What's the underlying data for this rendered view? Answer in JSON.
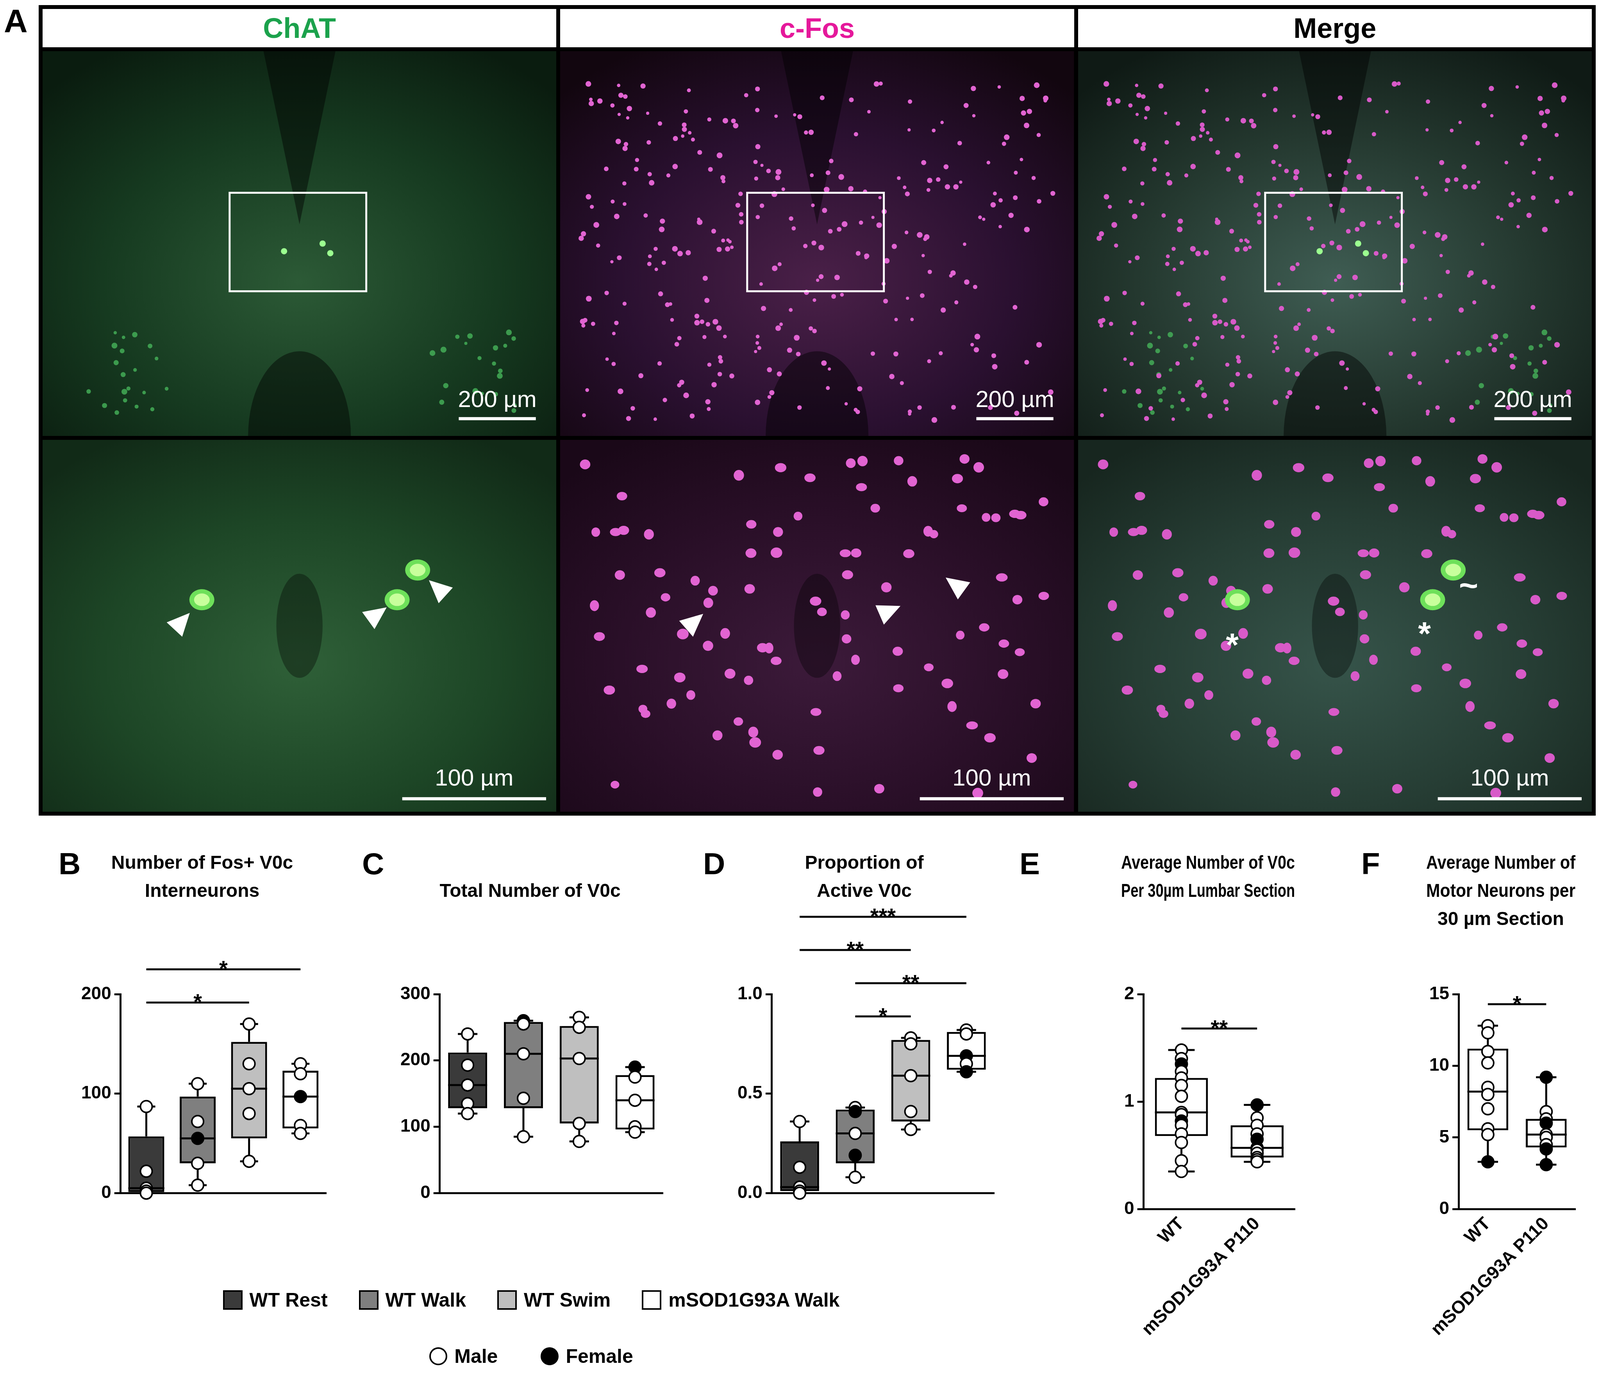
{
  "panel_a": {
    "panel": "A",
    "columns": [
      {
        "title": "ChAT",
        "color": "#1ba24c"
      },
      {
        "title": "c-Fos",
        "color": "#e5189b"
      },
      {
        "title": "Merge",
        "color": "#000000"
      }
    ],
    "scale_bars": [
      "200 µm",
      "100 µm"
    ],
    "merge_marks": [
      "*",
      "*",
      "~"
    ]
  },
  "point_key": [
    {
      "label": "Male",
      "marker": "open_circle"
    },
    {
      "label": "Female",
      "marker": "filled_circle"
    }
  ],
  "chart_data": [
    {
      "panel": "B",
      "type": "box",
      "title": [
        "Number of Fos+ V0c",
        "Interneurons"
      ],
      "categories": [
        "WT Rest",
        "WT Walk",
        "WT Swim",
        "mSOD1G93A Walk"
      ],
      "colors": [
        "#3a3a3a",
        "#7f7f7f",
        "#bfbfbf",
        "#ffffff"
      ],
      "legend": "bottom",
      "tick_labels": "y",
      "ylim": [
        0,
        200
      ],
      "yticks": [
        0,
        100,
        200
      ],
      "boxes": [
        {
          "min": 0,
          "q1": 1,
          "median": 5,
          "q3": 57,
          "max": 87
        },
        {
          "min": 8,
          "q1": 30,
          "median": 55,
          "q3": 97,
          "max": 110
        },
        {
          "min": 32,
          "q1": 55,
          "median": 105,
          "q3": 152,
          "max": 170
        },
        {
          "min": 60,
          "q1": 65,
          "median": 97,
          "q3": 123,
          "max": 130
        }
      ],
      "points": [
        [
          {
            "value": 87,
            "sex": "Male"
          },
          {
            "value": 22,
            "sex": "Male"
          },
          {
            "value": 5,
            "sex": "Male"
          },
          {
            "value": 2,
            "sex": "Male"
          },
          {
            "value": 0,
            "sex": "Male"
          }
        ],
        [
          {
            "value": 110,
            "sex": "Male"
          },
          {
            "value": 72,
            "sex": "Male"
          },
          {
            "value": 55,
            "sex": "Female"
          },
          {
            "value": 30,
            "sex": "Male"
          },
          {
            "value": 8,
            "sex": "Male"
          }
        ],
        [
          {
            "value": 170,
            "sex": "Male"
          },
          {
            "value": 130,
            "sex": "Male"
          },
          {
            "value": 105,
            "sex": "Male"
          },
          {
            "value": 80,
            "sex": "Male"
          },
          {
            "value": 32,
            "sex": "Male"
          }
        ],
        [
          {
            "value": 130,
            "sex": "Male"
          },
          {
            "value": 120,
            "sex": "Male"
          },
          {
            "value": 97,
            "sex": "Female"
          },
          {
            "value": 68,
            "sex": "Male"
          },
          {
            "value": 60,
            "sex": "Male"
          }
        ]
      ],
      "significance": [
        {
          "between": [
            "WT Rest",
            "WT Swim"
          ],
          "label": "*"
        },
        {
          "between": [
            "WT Rest",
            "mSOD1G93A Walk"
          ],
          "label": "*"
        }
      ]
    },
    {
      "panel": "C",
      "type": "box",
      "title": [
        "Total Number of V0c"
      ],
      "categories": [
        "WT Rest",
        "WT Walk",
        "WT Swim",
        "mSOD1G93A Walk"
      ],
      "colors": [
        "#3a3a3a",
        "#7f7f7f",
        "#bfbfbf",
        "#ffffff"
      ],
      "tick_labels": "y",
      "ylim": [
        0,
        300
      ],
      "yticks": [
        0,
        100,
        200,
        300
      ],
      "boxes": [
        {
          "min": 120,
          "q1": 128,
          "median": 163,
          "q3": 212,
          "max": 240
        },
        {
          "min": 85,
          "q1": 128,
          "median": 210,
          "q3": 258,
          "max": 260
        },
        {
          "min": 78,
          "q1": 105,
          "median": 203,
          "q3": 252,
          "max": 265
        },
        {
          "min": 92,
          "q1": 96,
          "median": 140,
          "q3": 178,
          "max": 190
        }
      ],
      "points": [
        [
          {
            "value": 240,
            "sex": "Male"
          },
          {
            "value": 193,
            "sex": "Male"
          },
          {
            "value": 163,
            "sex": "Male"
          },
          {
            "value": 135,
            "sex": "Male"
          },
          {
            "value": 120,
            "sex": "Male"
          }
        ],
        [
          {
            "value": 260,
            "sex": "Female"
          },
          {
            "value": 255,
            "sex": "Male"
          },
          {
            "value": 210,
            "sex": "Male"
          },
          {
            "value": 143,
            "sex": "Male"
          },
          {
            "value": 85,
            "sex": "Male"
          }
        ],
        [
          {
            "value": 265,
            "sex": "Male"
          },
          {
            "value": 250,
            "sex": "Male"
          },
          {
            "value": 203,
            "sex": "Male"
          },
          {
            "value": 105,
            "sex": "Male"
          },
          {
            "value": 78,
            "sex": "Male"
          }
        ],
        [
          {
            "value": 190,
            "sex": "Female"
          },
          {
            "value": 175,
            "sex": "Male"
          },
          {
            "value": 140,
            "sex": "Male"
          },
          {
            "value": 100,
            "sex": "Male"
          },
          {
            "value": 92,
            "sex": "Male"
          }
        ]
      ],
      "significance": []
    },
    {
      "panel": "D",
      "type": "box",
      "title": [
        "Proportion of",
        "Active V0c"
      ],
      "categories": [
        "WT Rest",
        "WT Walk",
        "WT Swim",
        "mSOD1G93A Walk"
      ],
      "colors": [
        "#3a3a3a",
        "#7f7f7f",
        "#bfbfbf",
        "#ffffff"
      ],
      "tick_labels": "y",
      "ylim": [
        0,
        1
      ],
      "yticks": [
        {
          "value": 0,
          "label": "0.0"
        },
        {
          "value": 0.5,
          "label": "0.5"
        },
        {
          "value": 1,
          "label": "1.0"
        }
      ],
      "boxes": [
        {
          "min": 0,
          "q1": 0.01,
          "median": 0.03,
          "q3": 0.26,
          "max": 0.36
        },
        {
          "min": 0.08,
          "q1": 0.15,
          "median": 0.3,
          "q3": 0.42,
          "max": 0.43
        },
        {
          "min": 0.32,
          "q1": 0.36,
          "median": 0.59,
          "q3": 0.77,
          "max": 0.78
        },
        {
          "min": 0.61,
          "q1": 0.62,
          "median": 0.69,
          "q3": 0.81,
          "max": 0.82
        }
      ],
      "points": [
        [
          {
            "value": 0.36,
            "sex": "Male"
          },
          {
            "value": 0.13,
            "sex": "Male"
          },
          {
            "value": 0.03,
            "sex": "Male"
          },
          {
            "value": 0.01,
            "sex": "Male"
          },
          {
            "value": 0,
            "sex": "Male"
          }
        ],
        [
          {
            "value": 0.43,
            "sex": "Male"
          },
          {
            "value": 0.41,
            "sex": "Female"
          },
          {
            "value": 0.3,
            "sex": "Male"
          },
          {
            "value": 0.19,
            "sex": "Female"
          },
          {
            "value": 0.08,
            "sex": "Male"
          }
        ],
        [
          {
            "value": 0.78,
            "sex": "Male"
          },
          {
            "value": 0.75,
            "sex": "Male"
          },
          {
            "value": 0.59,
            "sex": "Male"
          },
          {
            "value": 0.41,
            "sex": "Male"
          },
          {
            "value": 0.32,
            "sex": "Male"
          }
        ],
        [
          {
            "value": 0.82,
            "sex": "Male"
          },
          {
            "value": 0.8,
            "sex": "Male"
          },
          {
            "value": 0.69,
            "sex": "Female"
          },
          {
            "value": 0.65,
            "sex": "Male"
          },
          {
            "value": 0.61,
            "sex": "Female"
          }
        ]
      ],
      "significance": [
        {
          "between": [
            "WT Walk",
            "WT Swim"
          ],
          "label": "*"
        },
        {
          "between": [
            "WT Walk",
            "mSOD1G93A Walk"
          ],
          "label": "**"
        },
        {
          "between": [
            "WT Rest",
            "WT Swim"
          ],
          "label": "**"
        },
        {
          "between": [
            "WT Rest",
            "mSOD1G93A Walk"
          ],
          "label": "***"
        }
      ]
    },
    {
      "panel": "E",
      "type": "box",
      "title": [
        "Average Number of V0c",
        "Per 30µm Lumbar Section"
      ],
      "categories": [
        "WT",
        "mSOD1G93A P110"
      ],
      "colors": [
        "#ffffff",
        "#ffffff"
      ],
      "tick_labels": true,
      "ylim": [
        0,
        2
      ],
      "yticks": [
        0,
        1,
        2
      ],
      "boxes": [
        {
          "min": 0.35,
          "q1": 0.68,
          "median": 0.9,
          "q3": 1.22,
          "max": 1.48
        },
        {
          "min": 0.44,
          "q1": 0.48,
          "median": 0.57,
          "q3": 0.78,
          "max": 0.97
        }
      ],
      "points": [
        [
          {
            "value": 1.48,
            "sex": "Male"
          },
          {
            "value": 1.4,
            "sex": "Male"
          },
          {
            "value": 1.35,
            "sex": "Female"
          },
          {
            "value": 1.28,
            "sex": "Male"
          },
          {
            "value": 1.22,
            "sex": "Male"
          },
          {
            "value": 1.15,
            "sex": "Male"
          },
          {
            "value": 1.05,
            "sex": "Male"
          },
          {
            "value": 0.9,
            "sex": "Male"
          },
          {
            "value": 0.88,
            "sex": "Male"
          },
          {
            "value": 0.82,
            "sex": "Female"
          },
          {
            "value": 0.78,
            "sex": "Male"
          },
          {
            "value": 0.7,
            "sex": "Male"
          },
          {
            "value": 0.62,
            "sex": "Male"
          },
          {
            "value": 0.45,
            "sex": "Male"
          },
          {
            "value": 0.35,
            "sex": "Male"
          }
        ],
        [
          {
            "value": 0.97,
            "sex": "Female"
          },
          {
            "value": 0.85,
            "sex": "Male"
          },
          {
            "value": 0.78,
            "sex": "Male"
          },
          {
            "value": 0.7,
            "sex": "Male"
          },
          {
            "value": 0.65,
            "sex": "Female"
          },
          {
            "value": 0.57,
            "sex": "Female"
          },
          {
            "value": 0.55,
            "sex": "Male"
          },
          {
            "value": 0.52,
            "sex": "Male"
          },
          {
            "value": 0.48,
            "sex": "Male"
          },
          {
            "value": 0.46,
            "sex": "Male"
          },
          {
            "value": 0.44,
            "sex": "Male"
          }
        ]
      ],
      "significance": [
        {
          "between": [
            "WT",
            "mSOD1G93A P110"
          ],
          "label": "**"
        }
      ]
    },
    {
      "panel": "F",
      "type": "box",
      "title": [
        "Average Number of",
        "Motor Neurons per",
        "30 µm Section"
      ],
      "categories": [
        "WT",
        "mSOD1G93A P110"
      ],
      "colors": [
        "#ffffff",
        "#ffffff"
      ],
      "tick_labels": true,
      "ylim": [
        0,
        15
      ],
      "yticks": [
        0,
        5,
        10,
        15
      ],
      "boxes": [
        {
          "min": 3.3,
          "q1": 5.5,
          "median": 8.2,
          "q3": 11.2,
          "max": 12.8
        },
        {
          "min": 3.1,
          "q1": 4.3,
          "median": 5.2,
          "q3": 6.3,
          "max": 9.2
        }
      ],
      "points": [
        [
          {
            "value": 12.8,
            "sex": "Male"
          },
          {
            "value": 12.3,
            "sex": "Male"
          },
          {
            "value": 11,
            "sex": "Male"
          },
          {
            "value": 10.2,
            "sex": "Male"
          },
          {
            "value": 8.5,
            "sex": "Male"
          },
          {
            "value": 8,
            "sex": "Male"
          },
          {
            "value": 7,
            "sex": "Male"
          },
          {
            "value": 5.6,
            "sex": "Male"
          },
          {
            "value": 5.2,
            "sex": "Male"
          },
          {
            "value": 3.3,
            "sex": "Female"
          }
        ],
        [
          {
            "value": 9.2,
            "sex": "Female"
          },
          {
            "value": 6.8,
            "sex": "Male"
          },
          {
            "value": 6.3,
            "sex": "Male"
          },
          {
            "value": 6,
            "sex": "Female"
          },
          {
            "value": 5.2,
            "sex": "Male"
          },
          {
            "value": 5,
            "sex": "Male"
          },
          {
            "value": 4.5,
            "sex": "Male"
          },
          {
            "value": 4.2,
            "sex": "Female"
          },
          {
            "value": 3.1,
            "sex": "Female"
          }
        ]
      ],
      "significance": [
        {
          "between": [
            "WT",
            "mSOD1G93A P110"
          ],
          "label": "*"
        }
      ]
    }
  ]
}
